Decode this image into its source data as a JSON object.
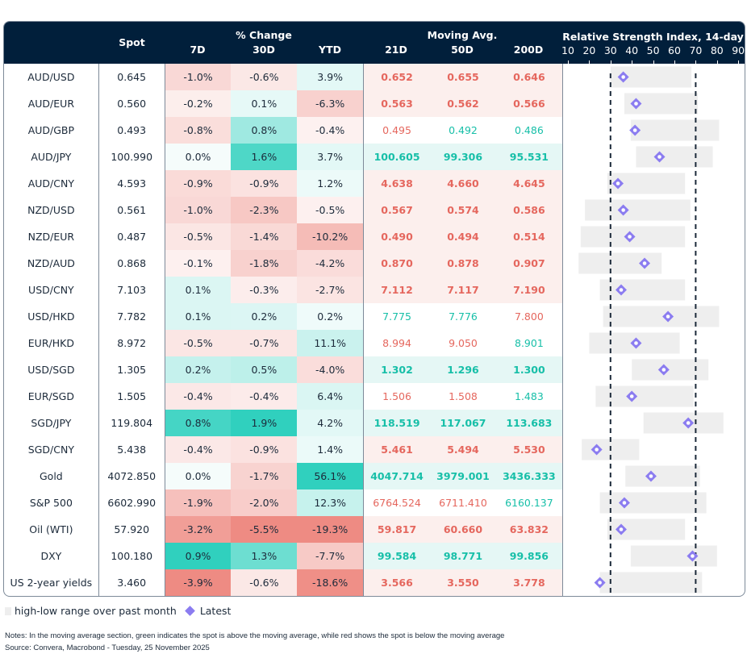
{
  "chart_data": {
    "type": "table",
    "headers": {
      "spot": "Spot",
      "pct_group": "% Change",
      "pct": [
        "7D",
        "30D",
        "YTD"
      ],
      "ma_group": "Moving Avg.",
      "ma": [
        "21D",
        "50D",
        "200D"
      ],
      "rsi_title": "Relative Strength Index, 14-day"
    },
    "rsi_axis": {
      "ticks": [
        "10",
        "20",
        "30",
        "40",
        "50",
        "60",
        "70",
        "80",
        "90"
      ],
      "range": [
        10,
        90
      ],
      "reference_lines": [
        30,
        70
      ]
    },
    "colors": {
      "ma_red": "#e5675e",
      "ma_green": "#17bfa8",
      "range_box": "#eeeeee",
      "latest": "#8b7cf0",
      "header_bg": "#011f3b"
    },
    "rows": [
      {
        "name": "AUD/USD",
        "spot": "0.645",
        "pct": [
          "-1.0%",
          "-0.6%",
          "3.9%"
        ],
        "ma": [
          "0.652",
          "0.655",
          "0.646"
        ],
        "ma_dir": [
          "below",
          "below",
          "below"
        ],
        "rsi": {
          "low": 30,
          "high": 68,
          "latest": 36
        }
      },
      {
        "name": "AUD/EUR",
        "spot": "0.560",
        "pct": [
          "-0.2%",
          "0.1%",
          "-6.3%"
        ],
        "ma": [
          "0.563",
          "0.562",
          "0.566"
        ],
        "ma_dir": [
          "below",
          "below",
          "below"
        ],
        "rsi": {
          "low": 36.5,
          "high": 71,
          "latest": 42
        }
      },
      {
        "name": "AUD/GBP",
        "spot": "0.493",
        "pct": [
          "-0.8%",
          "0.8%",
          "-0.4%"
        ],
        "ma": [
          "0.495",
          "0.492",
          "0.486"
        ],
        "ma_dir": [
          "below",
          "above",
          "above"
        ],
        "rsi": {
          "low": 39.5,
          "high": 81,
          "latest": 41.5
        }
      },
      {
        "name": "AUD/JPY",
        "spot": "100.990",
        "pct": [
          "0.0%",
          "1.6%",
          "3.7%"
        ],
        "ma": [
          "100.605",
          "99.306",
          "95.531"
        ],
        "ma_dir": [
          "above",
          "above",
          "above"
        ],
        "rsi": {
          "low": 42,
          "high": 78,
          "latest": 53
        }
      },
      {
        "name": "AUD/CNY",
        "spot": "4.593",
        "pct": [
          "-0.9%",
          "-0.9%",
          "1.2%"
        ],
        "ma": [
          "4.638",
          "4.660",
          "4.645"
        ],
        "ma_dir": [
          "below",
          "below",
          "below"
        ],
        "rsi": {
          "low": 28.5,
          "high": 65,
          "latest": 33.5
        }
      },
      {
        "name": "NZD/USD",
        "spot": "0.561",
        "pct": [
          "-1.0%",
          "-2.3%",
          "-0.5%"
        ],
        "ma": [
          "0.567",
          "0.574",
          "0.586"
        ],
        "ma_dir": [
          "below",
          "below",
          "below"
        ],
        "rsi": {
          "low": 18,
          "high": 67.5,
          "latest": 36
        }
      },
      {
        "name": "NZD/EUR",
        "spot": "0.487",
        "pct": [
          "-0.5%",
          "-1.4%",
          "-10.2%"
        ],
        "ma": [
          "0.490",
          "0.494",
          "0.514"
        ],
        "ma_dir": [
          "below",
          "below",
          "below"
        ],
        "rsi": {
          "low": 16,
          "high": 65,
          "latest": 39
        }
      },
      {
        "name": "NZD/AUD",
        "spot": "0.868",
        "pct": [
          "-0.1%",
          "-1.8%",
          "-4.2%"
        ],
        "ma": [
          "0.870",
          "0.878",
          "0.907"
        ],
        "ma_dir": [
          "below",
          "below",
          "below"
        ],
        "rsi": {
          "low": 15,
          "high": 54,
          "latest": 46
        }
      },
      {
        "name": "USD/CNY",
        "spot": "7.103",
        "pct": [
          "0.1%",
          "-0.3%",
          "-2.7%"
        ],
        "ma": [
          "7.112",
          "7.117",
          "7.190"
        ],
        "ma_dir": [
          "below",
          "below",
          "below"
        ],
        "rsi": {
          "low": 25,
          "high": 65,
          "latest": 35
        }
      },
      {
        "name": "USD/HKD",
        "spot": "7.782",
        "pct": [
          "0.1%",
          "0.2%",
          "0.2%"
        ],
        "ma": [
          "7.775",
          "7.776",
          "7.800"
        ],
        "ma_dir": [
          "above",
          "above",
          "below"
        ],
        "rsi": {
          "low": 26.5,
          "high": 81,
          "latest": 57
        }
      },
      {
        "name": "EUR/HKD",
        "spot": "8.972",
        "pct": [
          "-0.5%",
          "-0.7%",
          "11.1%"
        ],
        "ma": [
          "8.994",
          "9.050",
          "8.901"
        ],
        "ma_dir": [
          "below",
          "below",
          "above"
        ],
        "rsi": {
          "low": 20,
          "high": 62.5,
          "latest": 42
        }
      },
      {
        "name": "USD/SGD",
        "spot": "1.305",
        "pct": [
          "0.2%",
          "0.5%",
          "-4.0%"
        ],
        "ma": [
          "1.302",
          "1.296",
          "1.300"
        ],
        "ma_dir": [
          "above",
          "above",
          "above"
        ],
        "rsi": {
          "low": 40,
          "high": 76,
          "latest": 55
        }
      },
      {
        "name": "EUR/SGD",
        "spot": "1.505",
        "pct": [
          "-0.4%",
          "-0.4%",
          "6.4%"
        ],
        "ma": [
          "1.506",
          "1.508",
          "1.483"
        ],
        "ma_dir": [
          "below",
          "below",
          "above"
        ],
        "rsi": {
          "low": 23,
          "high": 69,
          "latest": 40
        }
      },
      {
        "name": "SGD/JPY",
        "spot": "119.804",
        "pct": [
          "0.8%",
          "1.9%",
          "4.2%"
        ],
        "ma": [
          "118.519",
          "117.067",
          "113.683"
        ],
        "ma_dir": [
          "above",
          "above",
          "above"
        ],
        "rsi": {
          "low": 45.5,
          "high": 83,
          "latest": 66.5
        }
      },
      {
        "name": "SGD/CNY",
        "spot": "5.438",
        "pct": [
          "-0.4%",
          "-0.9%",
          "1.4%"
        ],
        "ma": [
          "5.461",
          "5.494",
          "5.530"
        ],
        "ma_dir": [
          "below",
          "below",
          "below"
        ],
        "rsi": {
          "low": 16.5,
          "high": 43.5,
          "latest": 23.5
        }
      },
      {
        "name": "Gold",
        "spot": "4072.850",
        "pct": [
          "0.0%",
          "-1.7%",
          "56.1%"
        ],
        "ma": [
          "4047.714",
          "3979.001",
          "3436.333"
        ],
        "ma_dir": [
          "above",
          "above",
          "above"
        ],
        "rsi": {
          "low": 37,
          "high": 72,
          "latest": 49
        }
      },
      {
        "name": "S&P 500",
        "spot": "6602.990",
        "pct": [
          "-1.9%",
          "-2.0%",
          "12.3%"
        ],
        "ma": [
          "6764.524",
          "6711.410",
          "6160.137"
        ],
        "ma_dir": [
          "below",
          "below",
          "above"
        ],
        "rsi": {
          "low": 25,
          "high": 75,
          "latest": 36.5
        }
      },
      {
        "name": "Oil (WTI)",
        "spot": "57.920",
        "pct": [
          "-3.2%",
          "-5.5%",
          "-19.3%"
        ],
        "ma": [
          "59.817",
          "60.660",
          "63.832"
        ],
        "ma_dir": [
          "below",
          "below",
          "below"
        ],
        "rsi": {
          "low": 28.5,
          "high": 65,
          "latest": 35
        }
      },
      {
        "name": "DXY",
        "spot": "100.180",
        "pct": [
          "0.9%",
          "1.3%",
          "-7.7%"
        ],
        "ma": [
          "99.584",
          "98.771",
          "99.856"
        ],
        "ma_dir": [
          "above",
          "above",
          "above"
        ],
        "rsi": {
          "low": 39.5,
          "high": 80,
          "latest": 68.5
        }
      },
      {
        "name": "US 2-year yields",
        "spot": "3.460",
        "pct": [
          "-3.9%",
          "-0.6%",
          "-18.6%"
        ],
        "ma": [
          "3.566",
          "3.550",
          "3.778"
        ],
        "ma_dir": [
          "below",
          "below",
          "below"
        ],
        "rsi": {
          "low": 25,
          "high": 73,
          "latest": 25
        }
      }
    ],
    "legend": {
      "range": "high-low range over past month",
      "latest": "Latest"
    }
  },
  "notes": "Notes: In the moving average section, green indicates the spot is above the moving average, while red shows the spot is below the moving average",
  "source": "Source: Convera, Macrobond - Tuesday, 25 November 2025"
}
